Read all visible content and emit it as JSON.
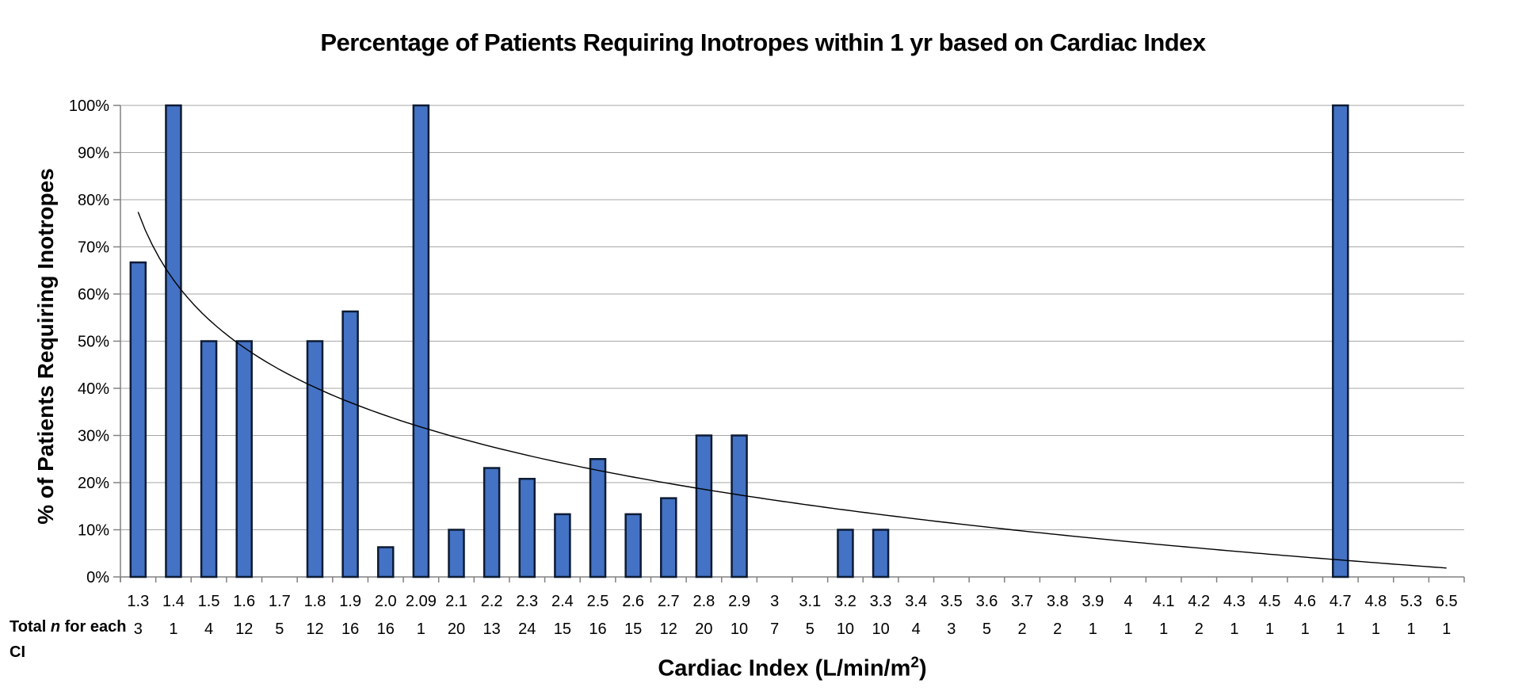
{
  "title": "Percentage of Patients Requiring Inotropes within 1 yr based on Cardiac Index",
  "chart_data": {
    "type": "bar",
    "title": "Percentage of Patients Requiring Inotropes within 1 yr based on Cardiac Index",
    "ylabel": "% of Patients Requiring Inotropes",
    "xlabel": {
      "main": "Cardiac Index (L/min/m",
      "sup": "2",
      "close": ")"
    },
    "categories": [
      "1.3",
      "1.4",
      "1.5",
      "1.6",
      "1.7",
      "1.8",
      "1.9",
      "2.0",
      "2.09",
      "2.1",
      "2.2",
      "2.3",
      "2.4",
      "2.5",
      "2.6",
      "2.7",
      "2.8",
      "2.9",
      "3",
      "3.1",
      "3.2",
      "3.3",
      "3.4",
      "3.5",
      "3.6",
      "3.7",
      "3.8",
      "3.9",
      "4",
      "4.1",
      "4.2",
      "4.3",
      "4.5",
      "4.6",
      "4.7",
      "4.8",
      "5.3",
      "6.5"
    ],
    "series": [
      {
        "name": "% of Patients Requiring Inotropes",
        "values": [
          66.7,
          100,
          50,
          50,
          0,
          50,
          56.3,
          6.3,
          100,
          10,
          23.1,
          20.8,
          13.3,
          25,
          13.3,
          16.7,
          30,
          30,
          0,
          0,
          10,
          10,
          0,
          0,
          0,
          0,
          0,
          0,
          0,
          0,
          0,
          0,
          0,
          0,
          100,
          0,
          0,
          0
        ]
      }
    ],
    "total_n_row": {
      "label_prefix": "Total ",
      "label_italic": "n",
      "label_suffix": " for each",
      "label_line2": "CI",
      "values": [
        3,
        1,
        4,
        12,
        5,
        12,
        16,
        16,
        1,
        20,
        13,
        24,
        15,
        16,
        15,
        12,
        20,
        10,
        7,
        5,
        10,
        10,
        4,
        3,
        5,
        2,
        2,
        1,
        1,
        1,
        2,
        1,
        1,
        1,
        1,
        1,
        1,
        1
      ]
    },
    "yticks": [
      "0%",
      "10%",
      "20%",
      "30%",
      "40%",
      "50%",
      "60%",
      "70%",
      "80%",
      "90%",
      "100%"
    ],
    "ylim": [
      0,
      100
    ],
    "grid": "horizontal",
    "legend_position": "none",
    "trendline": {
      "type": "logarithmic",
      "a": 77.4,
      "b": -20.76,
      "formula": "y = 77.4 - 20.76·ln(n), n = category index"
    },
    "colors": {
      "bar_fill": "#4472C4",
      "bar_border": "#0D1B33",
      "gridline": "#A6A6A6",
      "axis": "#808080",
      "trendline": "#000000",
      "background": "#FFFFFF",
      "text": "#000000"
    }
  }
}
